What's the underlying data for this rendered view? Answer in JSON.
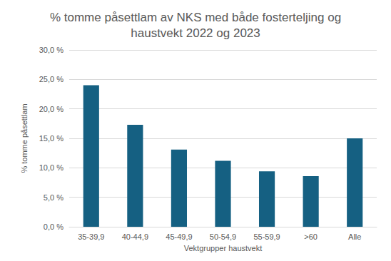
{
  "chart_data": {
    "type": "bar",
    "title": "% tomme påsettlam av NKS med både fosterteljing og\nhaustvekt 2022 og 2023",
    "x_label": "Vektgrupper haustvekt",
    "y_label": "% tomme påsettlam",
    "categories": [
      "35-39,9",
      "40-44,9",
      "45-49,9",
      "50-54,9",
      "55-59,9",
      ">60",
      "Alle"
    ],
    "values": [
      24.0,
      17.3,
      13.1,
      11.2,
      9.4,
      8.6,
      15.0
    ],
    "color": "#156082",
    "ylim": [
      0,
      30
    ],
    "yticks": [
      {
        "value": 0,
        "label": "0,0 %"
      },
      {
        "value": 5,
        "label": "5,0 %"
      },
      {
        "value": 10,
        "label": "10,0 %"
      },
      {
        "value": 15,
        "label": "15,0 %"
      },
      {
        "value": 20,
        "label": "20,0 %"
      },
      {
        "value": 25,
        "label": "25,0 %"
      },
      {
        "value": 30,
        "label": "30,0 %"
      }
    ],
    "grid": true
  }
}
